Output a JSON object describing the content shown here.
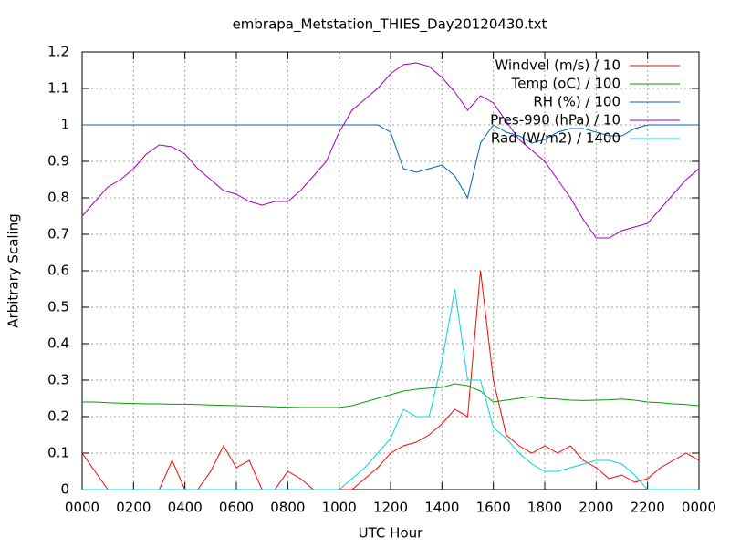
{
  "chart_data": {
    "type": "line",
    "title": "embrapa_Metstation_THIES_Day20120430.txt",
    "x_label": "UTC Hour",
    "y_label": "Arbitrary Scaling",
    "x": [
      0,
      0.5,
      1,
      1.5,
      2,
      2.5,
      3,
      3.5,
      4,
      4.5,
      5,
      5.5,
      6,
      6.5,
      7,
      7.5,
      8,
      8.5,
      9,
      9.5,
      10,
      10.5,
      11,
      11.5,
      12,
      12.5,
      13,
      13.5,
      14,
      14.5,
      15,
      15.5,
      16,
      16.5,
      17,
      17.5,
      18,
      18.5,
      19,
      19.5,
      20,
      20.5,
      21,
      21.5,
      22,
      22.5,
      23,
      23.5,
      24
    ],
    "series": [
      {
        "name": "Windvel (m/s) / 10",
        "color": "#ff0000",
        "values": [
          0.1,
          0.05,
          0,
          0,
          0,
          0,
          0,
          0.08,
          0,
          0,
          0.05,
          0.12,
          0.06,
          0.08,
          0,
          0,
          0.05,
          0.03,
          0,
          0,
          0,
          0,
          0.03,
          0.06,
          0.1,
          0.12,
          0.13,
          0.15,
          0.18,
          0.22,
          0.2,
          0.6,
          0.3,
          0.15,
          0.12,
          0.1,
          0.12,
          0.1,
          0.12,
          0.08,
          0.06,
          0.03,
          0.04,
          0.02,
          0.03,
          0.06,
          0.08,
          0.1,
          0.08
        ]
      },
      {
        "name": "Temp (oC) / 100",
        "color": "#00a000",
        "values": [
          0.24,
          0.24,
          0.238,
          0.237,
          0.236,
          0.235,
          0.235,
          0.234,
          0.234,
          0.233,
          0.232,
          0.231,
          0.23,
          0.229,
          0.228,
          0.227,
          0.226,
          0.225,
          0.225,
          0.225,
          0.225,
          0.23,
          0.24,
          0.25,
          0.26,
          0.27,
          0.275,
          0.278,
          0.28,
          0.29,
          0.285,
          0.27,
          0.24,
          0.245,
          0.25,
          0.255,
          0.25,
          0.248,
          0.245,
          0.244,
          0.245,
          0.246,
          0.248,
          0.245,
          0.24,
          0.238,
          0.235,
          0.233,
          0.23
        ]
      },
      {
        "name": "RH (%) / 100",
        "color": "#0060c0",
        "values": [
          1,
          1,
          1,
          1,
          1,
          1,
          1,
          1,
          1,
          1,
          1,
          1,
          1,
          1,
          1,
          1,
          1,
          1,
          1,
          1,
          1,
          1,
          1,
          1,
          0.98,
          0.88,
          0.87,
          0.88,
          0.89,
          0.86,
          0.8,
          0.95,
          1,
          0.98,
          0.97,
          0.95,
          0.96,
          0.98,
          0.99,
          0.99,
          0.98,
          0.97,
          0.97,
          0.99,
          1,
          1,
          1,
          1,
          1
        ]
      },
      {
        "name": "Pres-990 (hPa) / 10",
        "color": "#a000c0",
        "values": [
          0.75,
          0.79,
          0.83,
          0.85,
          0.88,
          0.92,
          0.945,
          0.94,
          0.92,
          0.88,
          0.85,
          0.82,
          0.81,
          0.79,
          0.78,
          0.79,
          0.79,
          0.82,
          0.86,
          0.9,
          0.98,
          1.04,
          1.07,
          1.1,
          1.14,
          1.165,
          1.17,
          1.16,
          1.13,
          1.09,
          1.04,
          1.08,
          1.06,
          1.01,
          0.96,
          0.93,
          0.9,
          0.85,
          0.8,
          0.74,
          0.69,
          0.69,
          0.71,
          0.72,
          0.73,
          0.77,
          0.81,
          0.85,
          0.88
        ]
      },
      {
        "name": "Rad (W/m2) / 1400",
        "color": "#00d8d8",
        "values": [
          0,
          0,
          0,
          0,
          0,
          0,
          0,
          0,
          0,
          0,
          0,
          0,
          0,
          0,
          0,
          0,
          0,
          0,
          0,
          0,
          0,
          0.03,
          0.06,
          0.1,
          0.14,
          0.22,
          0.2,
          0.2,
          0.35,
          0.55,
          0.3,
          0.3,
          0.17,
          0.14,
          0.1,
          0.07,
          0.05,
          0.05,
          0.06,
          0.07,
          0.08,
          0.08,
          0.07,
          0.04,
          0,
          0,
          0,
          0,
          0
        ]
      }
    ],
    "xlim": [
      0,
      24
    ],
    "xticks": [
      {
        "value": 0,
        "label": "0000"
      },
      {
        "value": 2,
        "label": "0200"
      },
      {
        "value": 4,
        "label": "0400"
      },
      {
        "value": 6,
        "label": "0600"
      },
      {
        "value": 8,
        "label": "0800"
      },
      {
        "value": 10,
        "label": "1000"
      },
      {
        "value": 12,
        "label": "1200"
      },
      {
        "value": 14,
        "label": "1400"
      },
      {
        "value": 16,
        "label": "1600"
      },
      {
        "value": 18,
        "label": "1800"
      },
      {
        "value": 20,
        "label": "2000"
      },
      {
        "value": 22,
        "label": "2200"
      },
      {
        "value": 24,
        "label": "0000"
      }
    ],
    "ylim": [
      0,
      1.2
    ],
    "yticks": [
      0,
      0.1,
      0.2,
      0.3,
      0.4,
      0.5,
      0.6,
      0.7,
      0.8,
      0.9,
      1,
      1.1,
      1.2
    ],
    "grid": true,
    "legend": "top-right"
  }
}
